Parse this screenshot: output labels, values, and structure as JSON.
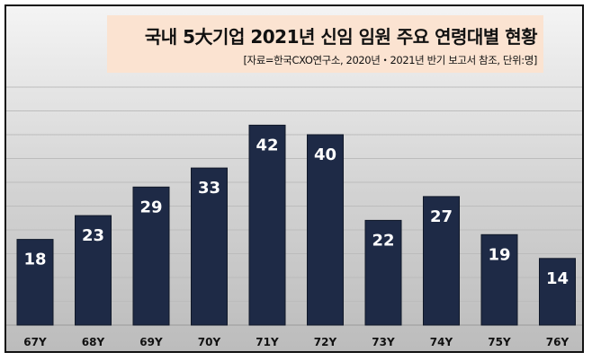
{
  "chart_data": {
    "type": "bar",
    "title": "국내 5大기업 2021년 신임 임원 주요 연령대별 현황",
    "subtitle": "[자료=한국CXO연구소, 2020년・2021년 반기 보고서 참조, 단위:명]",
    "categories": [
      "67Y",
      "68Y",
      "69Y",
      "70Y",
      "71Y",
      "72Y",
      "73Y",
      "74Y",
      "75Y",
      "76Y"
    ],
    "values": [
      18,
      23,
      29,
      33,
      42,
      40,
      22,
      27,
      19,
      14
    ],
    "ylim": [
      0,
      50
    ],
    "grid": true,
    "legend": "none",
    "colors": {
      "bar": "#1e2a46",
      "label": "#ffffff",
      "title_background": "#fbe3d1"
    }
  }
}
